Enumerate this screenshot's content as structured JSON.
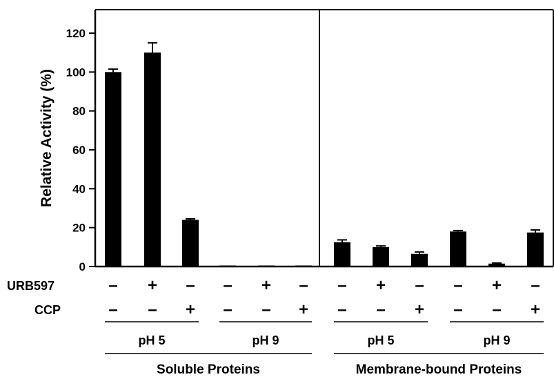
{
  "chart_data": {
    "type": "bar",
    "title": "",
    "xlabel": "",
    "ylabel": "Relative Activity (%)",
    "ylim": [
      0,
      130
    ],
    "yticks": [
      0,
      20,
      40,
      60,
      80,
      100,
      120
    ],
    "grid": false,
    "legend": "none",
    "bar_color": "#000000",
    "bars": [
      {
        "value": 100,
        "error": 1.5,
        "urb597": "–",
        "ccp": "–"
      },
      {
        "value": 110,
        "error": 5,
        "urb597": "+",
        "ccp": "–"
      },
      {
        "value": 24,
        "error": 0.5,
        "urb597": "–",
        "ccp": "+"
      },
      {
        "value": 0.4,
        "error": 0,
        "urb597": "–",
        "ccp": "–"
      },
      {
        "value": 0.2,
        "error": 0,
        "urb597": "+",
        "ccp": "–"
      },
      {
        "value": 0.2,
        "error": 0,
        "urb597": "–",
        "ccp": "+"
      },
      {
        "value": 12.5,
        "error": 1.2,
        "urb597": "–",
        "ccp": "–"
      },
      {
        "value": 10,
        "error": 0.6,
        "urb597": "+",
        "ccp": "–"
      },
      {
        "value": 6.5,
        "error": 1,
        "urb597": "–",
        "ccp": "+"
      },
      {
        "value": 18,
        "error": 0.5,
        "urb597": "–",
        "ccp": "–"
      },
      {
        "value": 1.5,
        "error": 0.3,
        "urb597": "+",
        "ccp": "–"
      },
      {
        "value": 17.5,
        "error": 1.3,
        "urb597": "–",
        "ccp": "+"
      }
    ],
    "row_labels": [
      "URB597",
      "CCP"
    ],
    "ph_groups": [
      {
        "label": "pH 5",
        "bars": [
          0,
          1,
          2
        ]
      },
      {
        "label": "pH 9",
        "bars": [
          3,
          4,
          5
        ]
      },
      {
        "label": "pH 5",
        "bars": [
          6,
          7,
          8
        ]
      },
      {
        "label": "pH 9",
        "bars": [
          9,
          10,
          11
        ]
      }
    ],
    "fractions": [
      {
        "label": "Soluble Proteins",
        "bars": [
          0,
          5
        ]
      },
      {
        "label": "Membrane-bound Proteins",
        "bars": [
          6,
          11
        ]
      }
    ]
  }
}
